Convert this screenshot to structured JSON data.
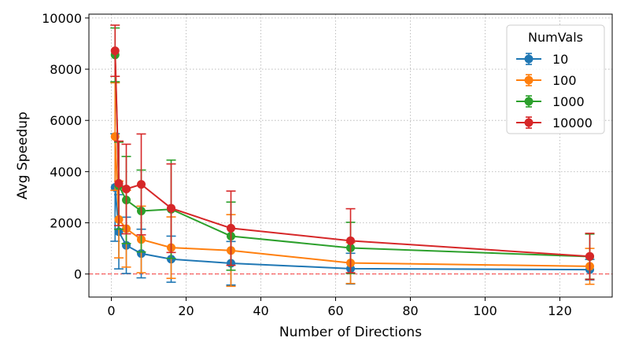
{
  "chart_data": {
    "type": "line",
    "title": "",
    "xlabel": "Number of Directions",
    "ylabel": "Avg Speedup",
    "xlim": [
      -6,
      134
    ],
    "ylim": [
      -900,
      10150
    ],
    "xticks": [
      0,
      20,
      40,
      60,
      80,
      100,
      120
    ],
    "yticks": [
      0,
      2000,
      4000,
      6000,
      8000,
      10000
    ],
    "grid": true,
    "reference_line": {
      "y": 0,
      "style": "dashed",
      "color": "#ff0000"
    },
    "legend": {
      "title": "NumVals",
      "placement": "top-right"
    },
    "x": [
      1,
      2,
      4,
      8,
      16,
      32,
      64,
      128
    ],
    "series": [
      {
        "name": "10",
        "color": "#1f77b4",
        "values": [
          3380,
          1650,
          1120,
          800,
          580,
          420,
          210,
          170
        ],
        "errors": [
          2100,
          1450,
          1100,
          950,
          900,
          850,
          600,
          400
        ]
      },
      {
        "name": "100",
        "color": "#ff7f0e",
        "values": [
          5370,
          2130,
          1770,
          1350,
          1030,
          920,
          430,
          300
        ],
        "errors": [
          2100,
          1500,
          1500,
          1300,
          1200,
          1400,
          800,
          700
        ]
      },
      {
        "name": "1000",
        "color": "#2ca02c",
        "values": [
          8560,
          3450,
          2890,
          2460,
          2530,
          1480,
          1020,
          680
        ],
        "errors": [
          1050,
          1700,
          1700,
          1600,
          1920,
          1330,
          1000,
          880
        ]
      },
      {
        "name": "10000",
        "color": "#d62728",
        "values": [
          8720,
          3540,
          3320,
          3500,
          2570,
          1790,
          1300,
          690
        ],
        "errors": [
          1000,
          1650,
          1750,
          1970,
          1730,
          1450,
          1250,
          900
        ]
      }
    ]
  }
}
